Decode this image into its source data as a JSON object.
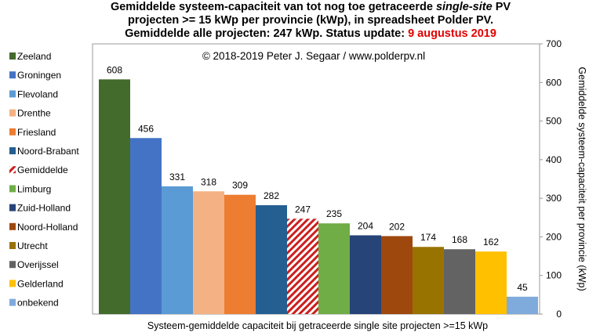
{
  "title": {
    "line1_pre": "Gemiddelde systeem-capaciteit van tot nog toe getraceerde ",
    "line1_em": "single-site",
    "line1_post": " PV",
    "line2": "projecten >= 15 kWp per provincie (kWp), in spreadsheet Polder PV.",
    "line3_pre": "Gemiddelde alle projecten: 247 kWp. Status update: ",
    "line3_date": "9 augustus 2019"
  },
  "copyright": "© 2018-2019  Peter J. Segaar / www.polderpv.nl",
  "colors": {
    "average_value_label": "#e00000",
    "average_hatch": "#cc1e1e"
  },
  "chart_data": {
    "type": "bar",
    "categories": [
      "Zeeland",
      "Groningen",
      "Flevoland",
      "Drenthe",
      "Friesland",
      "Noord-Brabant",
      "Gemiddelde",
      "Limburg",
      "Zuid-Holland",
      "Noord-Holland",
      "Utrecht",
      "Overijssel",
      "Gelderland",
      "onbekend"
    ],
    "values": [
      608,
      456,
      331,
      318,
      309,
      282,
      247,
      235,
      204,
      202,
      174,
      168,
      162,
      45
    ],
    "colors": [
      "#436b2c",
      "#4473c5",
      "#5b9bd5",
      "#f4b183",
      "#ed7d31",
      "#255e91",
      "#cc1e1e",
      "#70ad47",
      "#264478",
      "#9e480e",
      "#997300",
      "#636363",
      "#ffc000",
      "#7faadc"
    ],
    "hatched": [
      false,
      false,
      false,
      false,
      false,
      false,
      true,
      false,
      false,
      false,
      false,
      false,
      false,
      false
    ],
    "xlabel": "Systeem-gemiddelde capaciteit bij getraceerde single site projecten >=15 kWp",
    "ylabel": "Gemiddelde systeem-capaciteit per provincie (kWp)",
    "ylim": [
      0,
      700
    ],
    "yticks": [
      0,
      100,
      200,
      300,
      400,
      500,
      600,
      700
    ],
    "yaxis_side": "right",
    "grid": false,
    "legend_position": "left"
  }
}
